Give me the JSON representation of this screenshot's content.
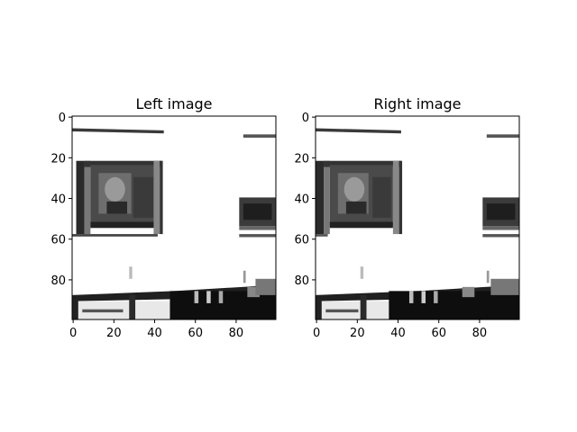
{
  "chart_data": [
    {
      "type": "image",
      "title": "Left image",
      "xlim": [
        0,
        99
      ],
      "ylim": [
        99,
        0
      ],
      "x_ticks": [
        0,
        20,
        40,
        60,
        80
      ],
      "y_ticks": [
        0,
        20,
        40,
        60,
        80
      ],
      "colormap": "grayscale"
    },
    {
      "type": "image",
      "title": "Right image",
      "xlim": [
        0,
        99
      ],
      "ylim": [
        99,
        0
      ],
      "x_ticks": [
        0,
        20,
        40,
        60,
        80
      ],
      "y_ticks": [
        0,
        20,
        40,
        60,
        80
      ],
      "colormap": "grayscale"
    }
  ]
}
